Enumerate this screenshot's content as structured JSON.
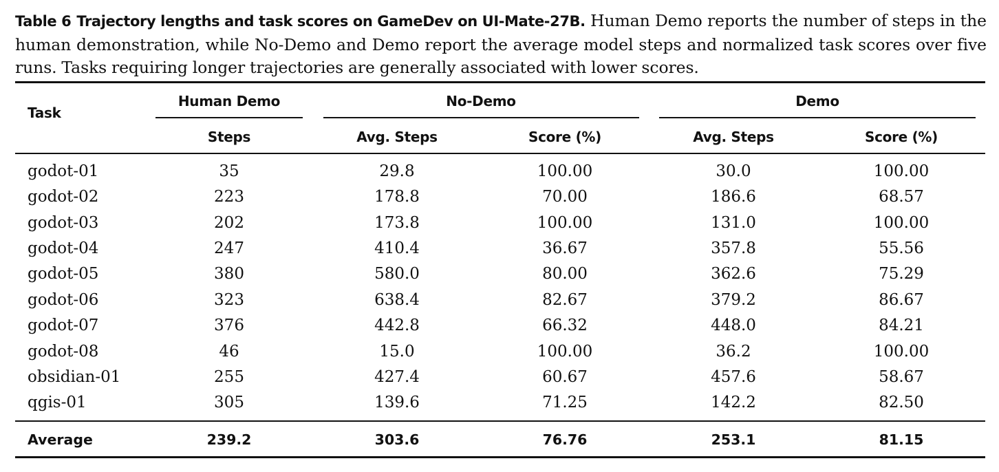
{
  "caption": {
    "label": "Table 6",
    "title": "Trajectory lengths and task scores on GameDev on UI-Mate-27B.",
    "body": "Human Demo reports the number of steps in the human demonstration, while No-Demo and Demo report the average model steps and normalized task scores over five runs. Tasks requiring longer trajectories are generally associated with lower scores."
  },
  "table": {
    "header": {
      "task": "Task",
      "groups": [
        "Human Demo",
        "No-Demo",
        "Demo"
      ],
      "columns": [
        "Steps",
        "Avg. Steps",
        "Score (%)",
        "Avg. Steps",
        "Score (%)"
      ]
    },
    "rows": [
      {
        "task": "godot-01",
        "human_steps": "35",
        "nodemo_steps": "29.8",
        "nodemo_score": "100.00",
        "demo_steps": "30.0",
        "demo_score": "100.00"
      },
      {
        "task": "godot-02",
        "human_steps": "223",
        "nodemo_steps": "178.8",
        "nodemo_score": "70.00",
        "demo_steps": "186.6",
        "demo_score": "68.57"
      },
      {
        "task": "godot-03",
        "human_steps": "202",
        "nodemo_steps": "173.8",
        "nodemo_score": "100.00",
        "demo_steps": "131.0",
        "demo_score": "100.00"
      },
      {
        "task": "godot-04",
        "human_steps": "247",
        "nodemo_steps": "410.4",
        "nodemo_score": "36.67",
        "demo_steps": "357.8",
        "demo_score": "55.56"
      },
      {
        "task": "godot-05",
        "human_steps": "380",
        "nodemo_steps": "580.0",
        "nodemo_score": "80.00",
        "demo_steps": "362.6",
        "demo_score": "75.29"
      },
      {
        "task": "godot-06",
        "human_steps": "323",
        "nodemo_steps": "638.4",
        "nodemo_score": "82.67",
        "demo_steps": "379.2",
        "demo_score": "86.67"
      },
      {
        "task": "godot-07",
        "human_steps": "376",
        "nodemo_steps": "442.8",
        "nodemo_score": "66.32",
        "demo_steps": "448.0",
        "demo_score": "84.21"
      },
      {
        "task": "godot-08",
        "human_steps": "46",
        "nodemo_steps": "15.0",
        "nodemo_score": "100.00",
        "demo_steps": "36.2",
        "demo_score": "100.00"
      },
      {
        "task": "obsidian-01",
        "human_steps": "255",
        "nodemo_steps": "427.4",
        "nodemo_score": "60.67",
        "demo_steps": "457.6",
        "demo_score": "58.67"
      },
      {
        "task": "qgis-01",
        "human_steps": "305",
        "nodemo_steps": "139.6",
        "nodemo_score": "71.25",
        "demo_steps": "142.2",
        "demo_score": "82.50"
      }
    ],
    "average": {
      "task": "Average",
      "human_steps": "239.2",
      "nodemo_steps": "303.6",
      "nodemo_score": "76.76",
      "demo_steps": "253.1",
      "demo_score": "81.15"
    }
  }
}
